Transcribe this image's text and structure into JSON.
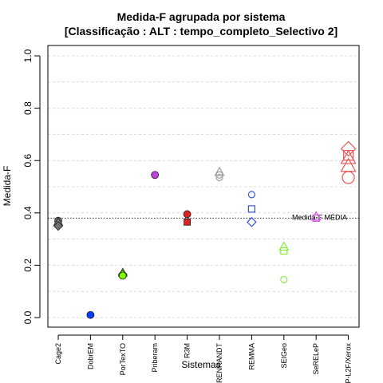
{
  "chart_data": {
    "type": "scatter",
    "title_line1": "Medida-F agrupada por sistema",
    "title_line2": "[Classificação : ALT : tempo_completo_Selectivo 2]",
    "xlabel": "Sistemas",
    "ylabel": "Medida-F",
    "ylim": [
      0,
      1
    ],
    "yticks": [
      "0.0",
      "0.2",
      "0.4",
      "0.6",
      "0.8",
      "1.0"
    ],
    "grid": "horizontal dotted",
    "categories": [
      "Cage2",
      "DobrEM",
      "PorTexTO",
      "Priberam",
      "R3M",
      "RENRANDT",
      "REMMA",
      "SEIGeo",
      "SeRELeP",
      "XIP-L2F/Xerox"
    ],
    "reference_line": {
      "label": "Medida-F MÉDIA",
      "value": 0.38
    },
    "points": [
      {
        "category": "Cage2",
        "y": 0.37,
        "shape": "circle",
        "color": "#707070",
        "filled": true
      },
      {
        "category": "Cage2",
        "y": 0.365,
        "shape": "triangle",
        "color": "#707070",
        "filled": true
      },
      {
        "category": "Cage2",
        "y": 0.35,
        "shape": "diamond",
        "color": "#707070",
        "filled": true
      },
      {
        "category": "DobrEM",
        "y": 0.01,
        "shape": "circle",
        "color": "#0a3cff",
        "filled": true
      },
      {
        "category": "PorTexTO",
        "y": 0.17,
        "shape": "triangle",
        "color": "#7cfc00",
        "filled": true
      },
      {
        "category": "PorTexTO",
        "y": 0.165,
        "shape": "diamond",
        "color": "#7cfc00",
        "filled": true
      },
      {
        "category": "PorTexTO",
        "y": 0.16,
        "shape": "circle",
        "color": "#7cfc00",
        "filled": true
      },
      {
        "category": "Priberam",
        "y": 0.545,
        "shape": "circle",
        "color": "#c040e0",
        "filled": true
      },
      {
        "category": "R3M",
        "y": 0.395,
        "shape": "circle",
        "color": "#dd2222",
        "filled": true
      },
      {
        "category": "R3M",
        "y": 0.365,
        "shape": "square",
        "color": "#dd2222",
        "filled": true
      },
      {
        "category": "RENRANDT",
        "y": 0.555,
        "shape": "triangle",
        "color": "#a0a0a0",
        "filled": false
      },
      {
        "category": "RENRANDT",
        "y": 0.545,
        "shape": "circle",
        "color": "#a0a0a0",
        "filled": false
      },
      {
        "category": "RENRANDT",
        "y": 0.535,
        "shape": "circle",
        "color": "#a0a0a0",
        "filled": false
      },
      {
        "category": "REMMA",
        "y": 0.47,
        "shape": "circle",
        "color": "#3355ee",
        "filled": false
      },
      {
        "category": "REMMA",
        "y": 0.415,
        "shape": "square",
        "color": "#3355ee",
        "filled": false
      },
      {
        "category": "REMMA",
        "y": 0.365,
        "shape": "diamond",
        "color": "#3355ee",
        "filled": false
      },
      {
        "category": "SEIGeo",
        "y": 0.27,
        "shape": "triangle",
        "color": "#88ee44",
        "filled": false
      },
      {
        "category": "SEIGeo",
        "y": 0.255,
        "shape": "square",
        "color": "#88ee44",
        "filled": false
      },
      {
        "category": "SEIGeo",
        "y": 0.145,
        "shape": "circle",
        "color": "#88ee44",
        "filled": false
      },
      {
        "category": "SeRELeP",
        "y": 0.385,
        "shape": "triangle",
        "color": "#cc55dd",
        "filled": false
      },
      {
        "category": "SeRELeP",
        "y": 0.38,
        "shape": "square",
        "color": "#cc55dd",
        "filled": false
      },
      {
        "category": "XIP-L2F/Xerox",
        "y": 0.645,
        "shape": "diamond",
        "color": "#ee5555",
        "filled": false
      },
      {
        "category": "XIP-L2F/Xerox",
        "y": 0.62,
        "shape": "square",
        "color": "#ee5555",
        "filled": false
      },
      {
        "category": "XIP-L2F/Xerox",
        "y": 0.61,
        "shape": "triangle",
        "color": "#ee5555",
        "filled": false
      },
      {
        "category": "XIP-L2F/Xerox",
        "y": 0.58,
        "shape": "triangle",
        "color": "#ee5555",
        "filled": false
      },
      {
        "category": "XIP-L2F/Xerox",
        "y": 0.535,
        "shape": "circle",
        "color": "#ee5555",
        "filled": false
      }
    ]
  }
}
